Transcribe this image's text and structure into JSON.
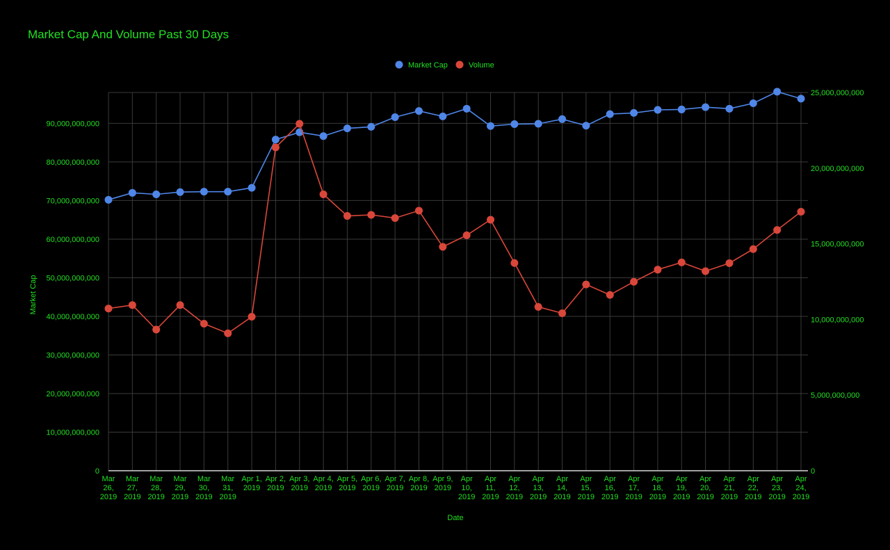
{
  "chart_data": {
    "type": "line",
    "title": "Market Cap And Volume Past 30 Days",
    "xlabel": "Date",
    "ylabel_left": "Market Cap",
    "ylim_left": [
      0,
      98000000000
    ],
    "yticks_left": [
      "0",
      "10,000,000,000",
      "20,000,000,000",
      "30,000,000,000",
      "40,000,000,000",
      "50,000,000,000",
      "60,000,000,000",
      "70,000,000,000",
      "80,000,000,000",
      "90,000,000,000"
    ],
    "ylim_right": [
      0,
      25000000000
    ],
    "yticks_right": [
      "0",
      "5,000,000,000",
      "10,000,000,000",
      "15,000,000,000",
      "20,000,000,000",
      "25,000,000,000"
    ],
    "grid": true,
    "legend_position": "top",
    "categories": [
      [
        "Mar",
        "26,",
        "2019"
      ],
      [
        "Mar",
        "27,",
        "2019"
      ],
      [
        "Mar",
        "28,",
        "2019"
      ],
      [
        "Mar",
        "29,",
        "2019"
      ],
      [
        "Mar",
        "30,",
        "2019"
      ],
      [
        "Mar",
        "31,",
        "2019"
      ],
      [
        "Apr 1,",
        "2019"
      ],
      [
        "Apr 2,",
        "2019"
      ],
      [
        "Apr 3,",
        "2019"
      ],
      [
        "Apr 4,",
        "2019"
      ],
      [
        "Apr 5,",
        "2019"
      ],
      [
        "Apr 6,",
        "2019"
      ],
      [
        "Apr 7,",
        "2019"
      ],
      [
        "Apr 8,",
        "2019"
      ],
      [
        "Apr 9,",
        "2019"
      ],
      [
        "Apr",
        "10,",
        "2019"
      ],
      [
        "Apr",
        "11,",
        "2019"
      ],
      [
        "Apr",
        "12,",
        "2019"
      ],
      [
        "Apr",
        "13,",
        "2019"
      ],
      [
        "Apr",
        "14,",
        "2019"
      ],
      [
        "Apr",
        "15,",
        "2019"
      ],
      [
        "Apr",
        "16,",
        "2019"
      ],
      [
        "Apr",
        "17,",
        "2019"
      ],
      [
        "Apr",
        "18,",
        "2019"
      ],
      [
        "Apr",
        "19,",
        "2019"
      ],
      [
        "Apr",
        "20,",
        "2019"
      ],
      [
        "Apr",
        "21,",
        "2019"
      ],
      [
        "Apr",
        "22,",
        "2019"
      ],
      [
        "Apr",
        "23,",
        "2019"
      ],
      [
        "Apr",
        "24,",
        "2019"
      ]
    ],
    "series": [
      {
        "name": "Market Cap",
        "axis": "left",
        "color": "#4f86e8",
        "values": [
          70200000000,
          72000000000,
          71600000000,
          72200000000,
          72300000000,
          72300000000,
          73300000000,
          85800000000,
          87700000000,
          86700000000,
          88700000000,
          89100000000,
          91600000000,
          93200000000,
          91800000000,
          93800000000,
          89300000000,
          89800000000,
          89900000000,
          91100000000,
          89400000000,
          92400000000,
          92700000000,
          93500000000,
          93600000000,
          94200000000,
          93800000000,
          95200000000,
          98200000000,
          96400000000
        ]
      },
      {
        "name": "Volume",
        "axis": "right",
        "color": "#d9473a",
        "values": [
          10720000000,
          10950000000,
          9330000000,
          10950000000,
          9720000000,
          9080000000,
          10180000000,
          21370000000,
          22930000000,
          18270000000,
          16840000000,
          16910000000,
          16700000000,
          17190000000,
          14800000000,
          15560000000,
          16590000000,
          13730000000,
          10830000000,
          10410000000,
          12310000000,
          11620000000,
          12490000000,
          13290000000,
          13770000000,
          13190000000,
          13720000000,
          14650000000,
          15910000000,
          17120000000
        ]
      }
    ]
  }
}
